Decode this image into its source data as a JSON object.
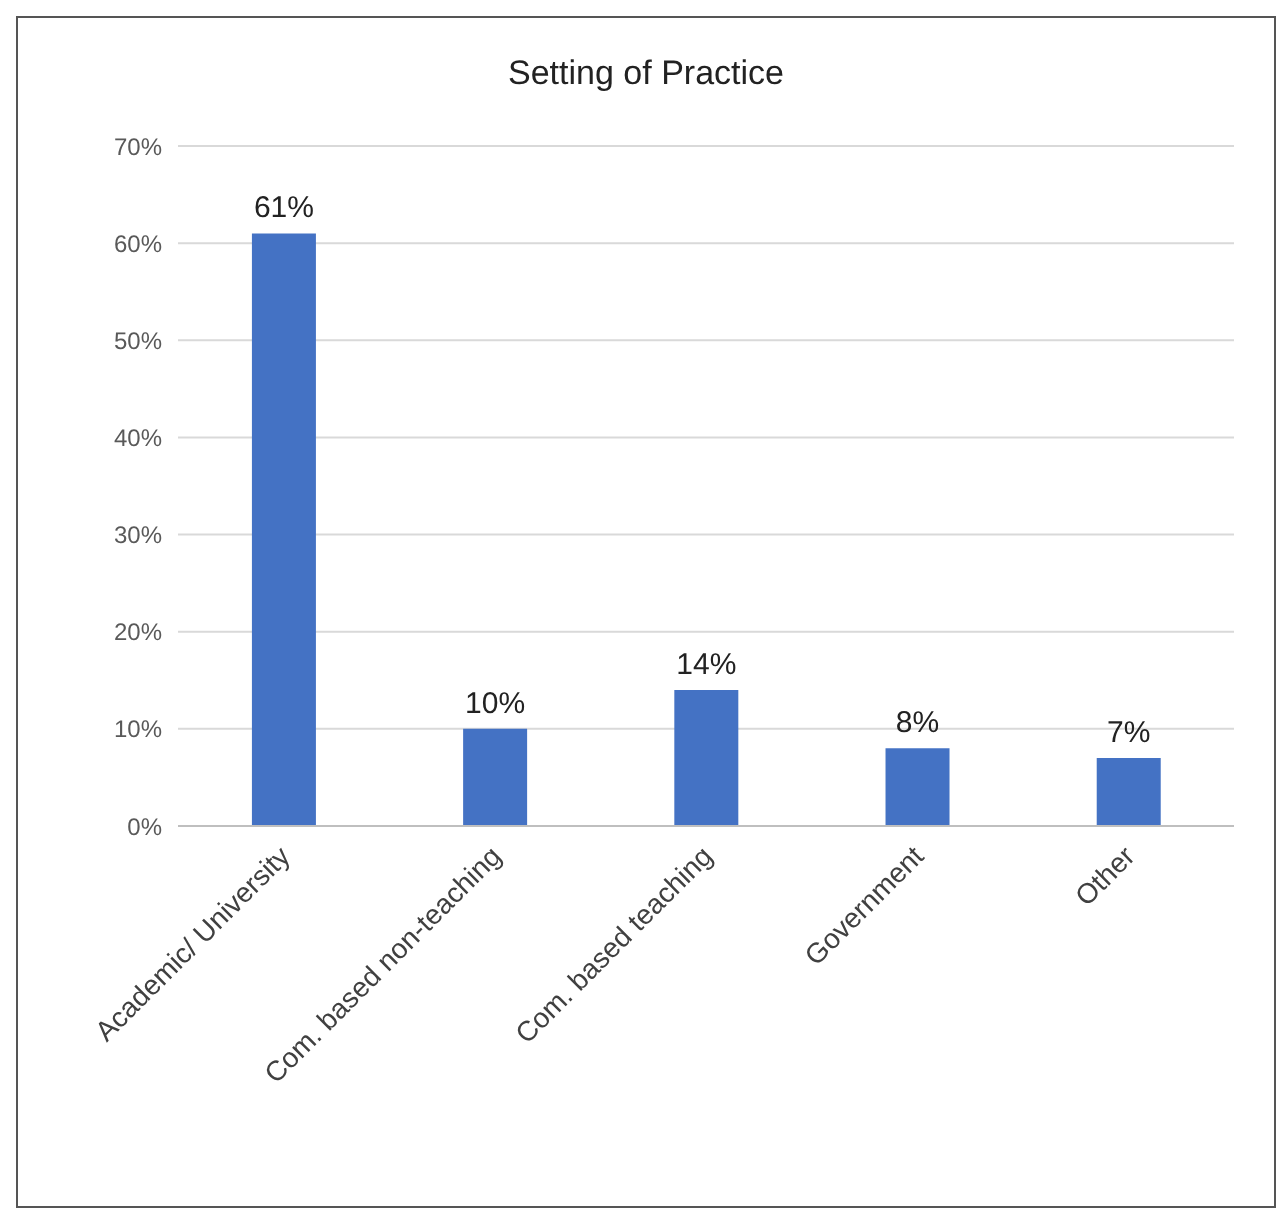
{
  "chart_data": {
    "type": "bar",
    "title": "Setting of Practice",
    "categories": [
      "Academic/ University",
      "Com. based non-teaching",
      "Com. based teaching",
      "Government",
      "Other"
    ],
    "values": [
      61,
      10,
      14,
      8,
      7
    ],
    "value_labels": [
      "61%",
      "10%",
      "14%",
      "8%",
      "7%"
    ],
    "color": "#4472c4",
    "ylim": [
      0,
      70
    ],
    "yticks": [
      {
        "value": 0,
        "label": "0%"
      },
      {
        "value": 10,
        "label": "10%"
      },
      {
        "value": 20,
        "label": "20%"
      },
      {
        "value": 30,
        "label": "30%"
      },
      {
        "value": 40,
        "label": "40%"
      },
      {
        "value": 50,
        "label": "50%"
      },
      {
        "value": 60,
        "label": "60%"
      },
      {
        "value": 70,
        "label": "70%"
      }
    ],
    "grid": "y"
  }
}
